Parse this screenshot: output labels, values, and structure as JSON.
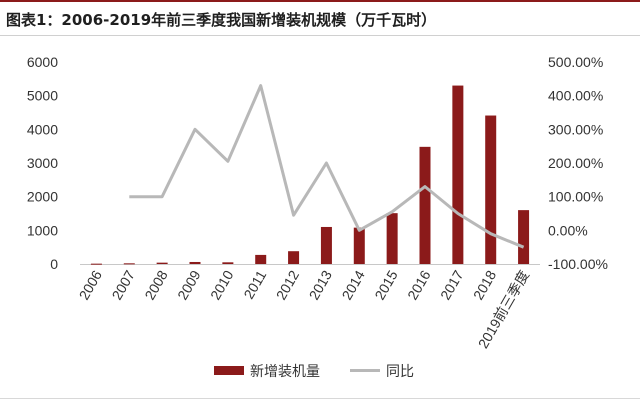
{
  "title": "图表1：2006-2019年前三季度我国新增装机规模（万千瓦时）",
  "chart_data": {
    "type": "bar",
    "categories": [
      "2006",
      "2007",
      "2008",
      "2009",
      "2010",
      "2011",
      "2012",
      "2013",
      "2014",
      "2015",
      "2016",
      "2017",
      "2018",
      "2019前三季度"
    ],
    "series": [
      {
        "name": "新增装机量",
        "type": "bar",
        "axis": "left",
        "color": "#8b1a1a",
        "values": [
          10,
          20,
          40,
          60,
          50,
          270,
          380,
          1100,
          1080,
          1510,
          3480,
          5300,
          4410,
          1600
        ]
      },
      {
        "name": "同比",
        "type": "line",
        "axis": "right",
        "color": "#b8b8b8",
        "values": [
          null,
          100,
          100,
          300,
          205,
          430,
          45,
          200,
          0,
          55,
          130,
          50,
          -10,
          -50
        ]
      }
    ],
    "y_left": {
      "min": 0,
      "max": 6000,
      "ticks": [
        "0",
        "1000",
        "2000",
        "3000",
        "4000",
        "5000",
        "6000"
      ]
    },
    "y_right": {
      "min": -100,
      "max": 500,
      "ticks": [
        "-100.00%",
        "0.00%",
        "100.00%",
        "200.00%",
        "300.00%",
        "400.00%",
        "500.00%"
      ]
    },
    "grid": false,
    "legend_position": "bottom"
  }
}
